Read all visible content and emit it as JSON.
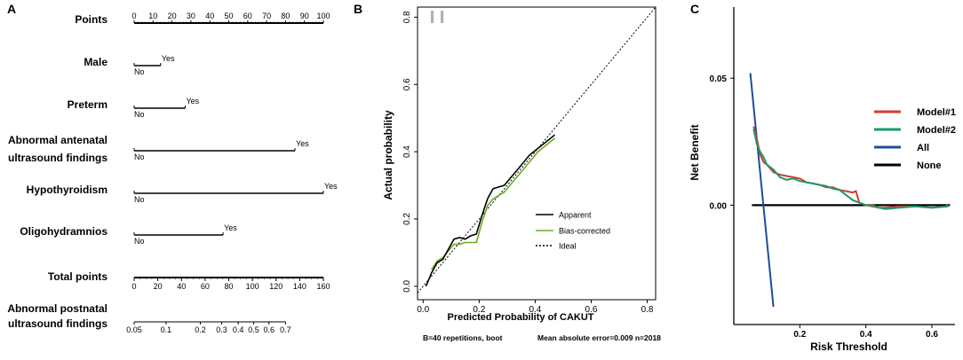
{
  "panels": [
    {
      "label": "A",
      "type": "nomogram",
      "points_axis": {
        "title": "Points",
        "ticks": [
          0,
          10,
          20,
          30,
          40,
          50,
          60,
          70,
          80,
          90,
          100
        ]
      },
      "predictors": [
        {
          "name_lines": [
            "Male"
          ],
          "low": "No",
          "high": "Yes",
          "points": 14
        },
        {
          "name_lines": [
            "Preterm"
          ],
          "low": "No",
          "high": "Yes",
          "points": 27
        },
        {
          "name_lines": [
            "Abnormal antenatal",
            "ultrasound findings"
          ],
          "low": "No",
          "high": "Yes",
          "points": 85
        },
        {
          "name_lines": [
            "Hypothyroidism"
          ],
          "low": "No",
          "high": "Yes",
          "points": 100
        },
        {
          "name_lines": [
            "Oligohydramnios"
          ],
          "low": "No",
          "high": "Yes",
          "points": 47
        }
      ],
      "total_points": {
        "title": "Total points",
        "ticks": [
          0,
          20,
          40,
          60,
          80,
          100,
          120,
          140,
          160
        ]
      },
      "probability_axis": {
        "title_lines": [
          "Abnormal postnatal",
          "ultrasound findings"
        ],
        "ticks": [
          {
            "label": "0.05",
            "total": 0
          },
          {
            "label": "0.1",
            "total": 27
          },
          {
            "label": "0.2",
            "total": 56
          },
          {
            "label": "0.3",
            "total": 74
          },
          {
            "label": "0.4",
            "total": 88
          },
          {
            "label": "0.5",
            "total": 101
          },
          {
            "label": "0.6",
            "total": 114
          },
          {
            "label": "0.7",
            "total": 128
          }
        ]
      }
    },
    {
      "label": "B",
      "type": "line",
      "xlabel": "Predicted Probability of CAKUT",
      "ylabel": "Actual probability",
      "xlim": [
        -0.02,
        0.83
      ],
      "ylim": [
        -0.04,
        0.83
      ],
      "xticks": [
        0.0,
        0.2,
        0.4,
        0.6,
        0.8
      ],
      "yticks": [
        0.0,
        0.2,
        0.4,
        0.6,
        0.8
      ],
      "rug_x": [
        0.03,
        0.035,
        0.065,
        0.07
      ],
      "series": [
        {
          "name": "Apparent",
          "color": "#000000",
          "x": [
            0.01,
            0.03,
            0.05,
            0.07,
            0.09,
            0.11,
            0.13,
            0.15,
            0.17,
            0.19,
            0.21,
            0.23,
            0.25,
            0.27,
            0.29,
            0.31,
            0.33,
            0.35,
            0.38,
            0.41,
            0.44,
            0.47
          ],
          "y": [
            0.0,
            0.04,
            0.07,
            0.08,
            0.11,
            0.14,
            0.145,
            0.14,
            0.15,
            0.155,
            0.21,
            0.26,
            0.29,
            0.295,
            0.3,
            0.32,
            0.34,
            0.36,
            0.39,
            0.41,
            0.43,
            0.45
          ]
        },
        {
          "name": "Bias-corrected",
          "color": "#6aaa22",
          "x": [
            0.03,
            0.05,
            0.07,
            0.09,
            0.11,
            0.13,
            0.15,
            0.17,
            0.19,
            0.21,
            0.23,
            0.25,
            0.27,
            0.29,
            0.31,
            0.33,
            0.35,
            0.38,
            0.41,
            0.44,
            0.47
          ],
          "y": [
            0.05,
            0.075,
            0.085,
            0.105,
            0.125,
            0.125,
            0.13,
            0.13,
            0.13,
            0.19,
            0.24,
            0.26,
            0.27,
            0.28,
            0.3,
            0.32,
            0.34,
            0.37,
            0.4,
            0.42,
            0.44
          ]
        }
      ],
      "ideal": {
        "name": "Ideal",
        "x": [
          -0.02,
          0.83
        ],
        "y": [
          -0.02,
          0.83
        ]
      },
      "footnote_left": "B=40 repetitions, boot",
      "footnote_right": "Mean absolute error=0.009 n=2018"
    },
    {
      "label": "C",
      "type": "line",
      "xlabel": "Risk Threshold",
      "ylabel": "Net Benefit",
      "xlim": [
        0.0,
        0.67
      ],
      "ylim": [
        -0.047,
        0.078
      ],
      "xticks": [
        0.2,
        0.4,
        0.6
      ],
      "yticks": [
        0.0,
        0.05
      ],
      "series": [
        {
          "name": "Model#1",
          "color": "#d63a2f",
          "x": [
            0.06,
            0.07,
            0.08,
            0.09,
            0.1,
            0.12,
            0.14,
            0.16,
            0.18,
            0.2,
            0.22,
            0.24,
            0.26,
            0.28,
            0.3,
            0.32,
            0.34,
            0.36,
            0.37,
            0.38,
            0.4,
            0.42,
            0.44,
            0.46,
            0.5,
            0.55,
            0.6,
            0.64,
            0.65
          ],
          "y": [
            0.031,
            0.026,
            0.02,
            0.017,
            0.016,
            0.013,
            0.012,
            0.0115,
            0.011,
            0.0105,
            0.009,
            0.0085,
            0.008,
            0.007,
            0.007,
            0.006,
            0.0055,
            0.005,
            0.0055,
            0.001,
            0.0,
            -0.0005,
            -0.001,
            -0.001,
            -0.0005,
            -0.0005,
            -0.001,
            -0.0005,
            0.0
          ]
        },
        {
          "name": "Model#2",
          "color": "#1a9a6a",
          "x": [
            0.06,
            0.07,
            0.08,
            0.09,
            0.1,
            0.12,
            0.14,
            0.16,
            0.18,
            0.2,
            0.22,
            0.24,
            0.26,
            0.28,
            0.3,
            0.32,
            0.34,
            0.36,
            0.38,
            0.4,
            0.42,
            0.44,
            0.46,
            0.5,
            0.55,
            0.6,
            0.65
          ],
          "y": [
            0.03,
            0.024,
            0.021,
            0.019,
            0.016,
            0.014,
            0.011,
            0.01,
            0.0105,
            0.0095,
            0.009,
            0.0085,
            0.008,
            0.0075,
            0.0065,
            0.006,
            0.004,
            0.002,
            0.001,
            0.0,
            0.0,
            -0.001,
            -0.0015,
            -0.001,
            -0.0005,
            -0.001,
            -0.0005
          ]
        },
        {
          "name": "All",
          "color": "#1f4e99",
          "x": [
            0.05,
            0.12
          ],
          "y": [
            0.052,
            -0.04
          ]
        },
        {
          "name": "None",
          "color": "#000000",
          "x": [
            0.055,
            0.655
          ],
          "y": [
            0.0,
            0.0
          ]
        }
      ]
    }
  ]
}
